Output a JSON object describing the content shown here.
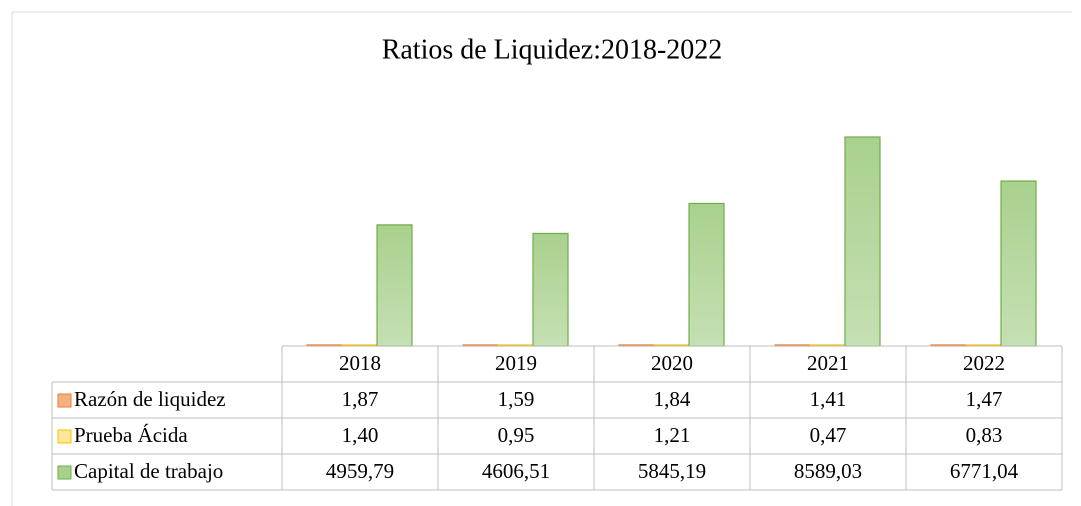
{
  "chart_data": {
    "type": "bar",
    "title": "Ratios de Liquidez:2018-2022",
    "categories": [
      "2018",
      "2019",
      "2020",
      "2021",
      "2022"
    ],
    "series": [
      {
        "name": "Razón de liquidez",
        "color": "#f4b183",
        "values": [
          1.87,
          1.59,
          1.84,
          1.41,
          1.47
        ],
        "value_labels": [
          "1,87",
          "1,59",
          "1,84",
          "1,41",
          "1,47"
        ]
      },
      {
        "name": "Prueba Ácida",
        "color": "#ffe699",
        "values": [
          1.4,
          0.95,
          1.21,
          0.47,
          0.83
        ],
        "value_labels": [
          "1,40",
          "0,95",
          "1,21",
          "0,47",
          "0,83"
        ]
      },
      {
        "name": "Capital de trabajo",
        "color": "#a9d18e",
        "values": [
          4959.79,
          4606.51,
          5845.19,
          8589.03,
          6771.04
        ],
        "value_labels": [
          "4959,79",
          "4606,51",
          "5845,19",
          "8589,03",
          "6771,04"
        ]
      }
    ]
  }
}
